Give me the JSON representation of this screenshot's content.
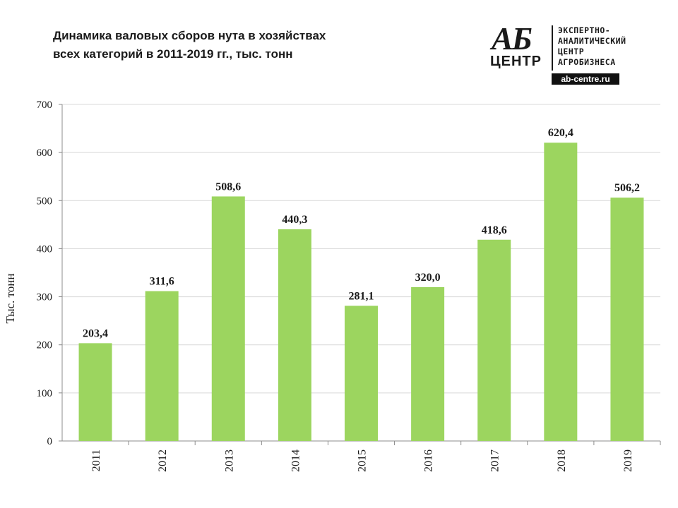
{
  "title": {
    "line1": "Динамика валовых сборов нута в хозяйствах",
    "line2": "всех категорий в 2011-2019 гг., тыс. тонн"
  },
  "logo": {
    "mark": "АБ",
    "sub": "ЦЕНТР",
    "lines": [
      "ЭКСПЕРТНО-",
      "АНАЛИТИЧЕСКИЙ",
      "ЦЕНТР",
      "АГРОБИЗНЕСА"
    ],
    "url": "ab-centre.ru"
  },
  "chart_data": {
    "type": "bar",
    "categories": [
      "2011",
      "2012",
      "2013",
      "2014",
      "2015",
      "2016",
      "2017",
      "2018",
      "2019"
    ],
    "values": [
      203.4,
      311.6,
      508.6,
      440.3,
      281.1,
      320.0,
      418.6,
      620.4,
      506.2
    ],
    "data_labels": [
      "203,4",
      "311,6",
      "508,6",
      "440,3",
      "281,1",
      "320,0",
      "418,6",
      "620,4",
      "506,2"
    ],
    "ylabel": "Тыс. тонн",
    "ylim": [
      0,
      700
    ],
    "yticks": [
      "0",
      "100",
      "200",
      "300",
      "400",
      "500",
      "600",
      "700"
    ],
    "grid": true,
    "bar_color": "#9cd55f",
    "xtick_rotation": "vertical"
  }
}
